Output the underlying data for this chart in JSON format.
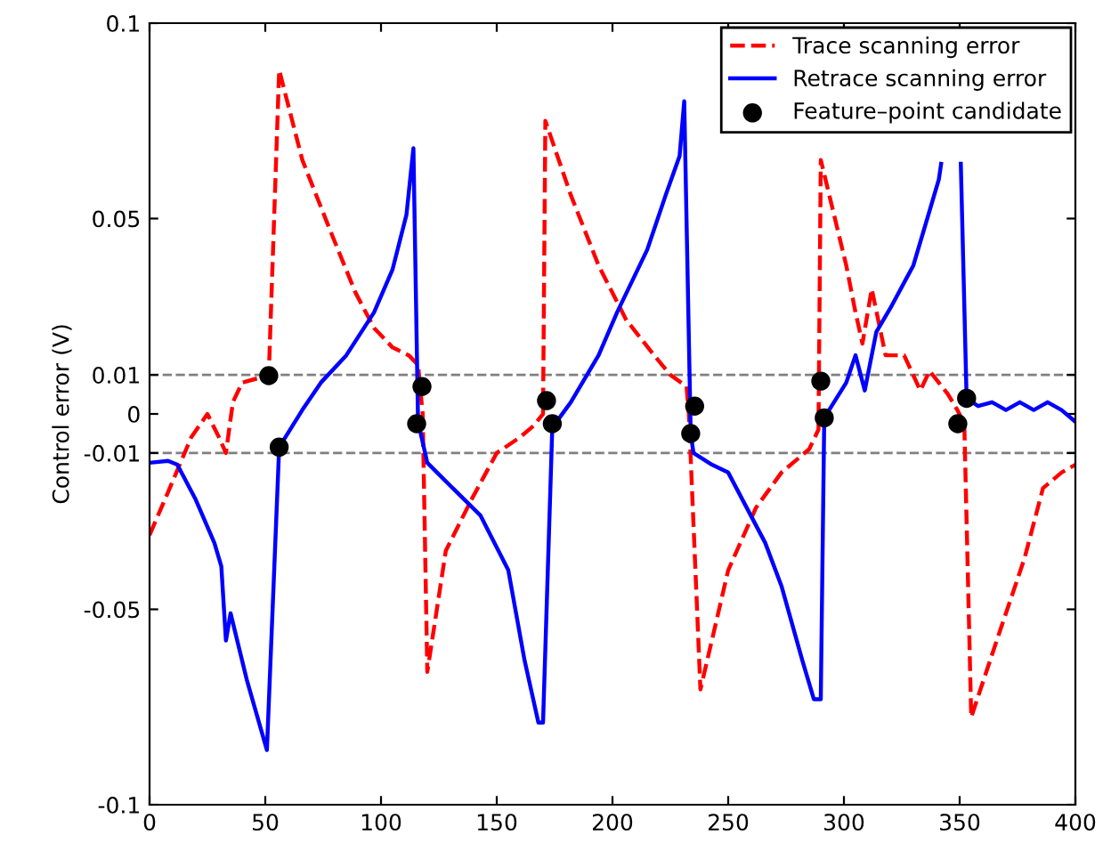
{
  "chart_data": {
    "type": "line",
    "ylabel": "Control error (V)",
    "xlim": [
      0,
      400
    ],
    "ylim": [
      -0.1,
      0.1
    ],
    "xticks": [
      0,
      50,
      100,
      150,
      200,
      250,
      300,
      350,
      400
    ],
    "yticks": [
      -0.1,
      -0.05,
      -0.01,
      0,
      0.01,
      0.05,
      0.1
    ],
    "grid": false,
    "legend": "top right",
    "ref_lines": [
      {
        "axis": "y",
        "value": 0.01,
        "color": "#808080",
        "line_style": "dashed"
      },
      {
        "axis": "y",
        "value": -0.01,
        "color": "#808080",
        "line_style": "dashed"
      }
    ],
    "series": [
      {
        "name": "Trace scanning error",
        "color": "#ff0000",
        "line_style": "dashed",
        "marker": "none",
        "x": [
          0,
          8,
          18,
          25,
          30,
          33,
          36,
          40,
          46,
          51.5,
          56,
          66,
          78,
          89,
          97,
          105,
          112,
          116,
          118,
          120,
          128,
          139,
          150,
          160,
          166,
          170,
          171,
          182,
          194,
          206,
          218,
          225,
          232,
          233,
          238,
          250,
          262,
          273,
          285,
          289,
          290,
          301,
          305,
          308,
          312,
          318,
          326,
          333,
          337,
          345,
          349,
          352,
          355,
          366,
          378,
          386,
          394,
          400
        ],
        "values": [
          -0.031,
          -0.02,
          -0.006,
          0,
          -0.006,
          -0.01,
          0.003,
          0.008,
          0.009,
          0.0098,
          0.088,
          0.065,
          0.047,
          0.031,
          0.022,
          0.017,
          0.015,
          0.0125,
          0.0,
          -0.066,
          -0.035,
          -0.022,
          -0.01,
          -0.006,
          -0.003,
          0.0,
          0.075,
          0.056,
          0.038,
          0.024,
          0.015,
          0.01,
          0.007,
          0.0,
          -0.0705,
          -0.04,
          -0.024,
          -0.015,
          -0.009,
          -0.004,
          0.065,
          0.038,
          0.026,
          0.018,
          0.032,
          0.015,
          0.015,
          0.006,
          0.011,
          0.005,
          0.001,
          -0.0025,
          -0.0776,
          -0.058,
          -0.037,
          -0.019,
          -0.015,
          -0.013
        ]
      },
      {
        "name": "Retrace scanning error",
        "color": "#0000ff",
        "line_style": "solid",
        "marker": "none",
        "x": [
          0,
          8,
          12,
          20,
          28,
          31,
          33,
          35,
          42,
          50.7,
          56,
          66,
          74,
          85,
          97,
          105,
          111,
          114,
          116,
          120,
          131,
          143,
          155,
          162,
          168,
          170,
          174,
          182,
          194,
          202,
          215,
          223,
          229,
          231,
          233.8,
          235,
          243,
          250,
          258,
          266,
          273,
          282,
          287,
          290,
          291.5,
          301,
          305,
          309,
          314,
          320,
          330,
          335,
          341,
          342,
          346,
          350.5,
          353,
          358,
          364,
          370,
          376,
          382,
          388,
          394,
          400
        ],
        "values": [
          -0.0125,
          -0.012,
          -0.013,
          -0.022,
          -0.033,
          -0.039,
          -0.058,
          -0.051,
          -0.068,
          -0.086,
          -0.0085,
          0.001,
          0.008,
          0.015,
          0.026,
          0.037,
          0.051,
          0.068,
          -0.002,
          -0.0125,
          -0.019,
          -0.026,
          -0.04,
          -0.063,
          -0.079,
          -0.079,
          -0.0035,
          0.003,
          0.015,
          0.026,
          0.042,
          0.056,
          0.066,
          0.08,
          -0.005,
          -0.01,
          -0.013,
          -0.015,
          -0.024,
          -0.033,
          -0.044,
          -0.063,
          -0.073,
          -0.073,
          -0.001,
          0.008,
          0.015,
          0.006,
          0.021,
          0.027,
          0.038,
          0.048,
          0.06,
          0.064,
          null,
          0.064,
          0.004,
          0.002,
          0.003,
          0.001,
          0.003,
          0.001,
          0.003,
          0.001,
          -0.002
        ]
      },
      {
        "name": "Feature–point candidate",
        "type": "scatter",
        "color": "#000000",
        "marker": "circle",
        "x": [
          51.5,
          56,
          115.4,
          117.7,
          171.5,
          174,
          233.8,
          235.5,
          290,
          291.5,
          349.2,
          353
        ],
        "values": [
          0.0098,
          -0.0085,
          -0.0025,
          0.007,
          0.0034,
          -0.0025,
          -0.005,
          0.002,
          0.0084,
          -0.001,
          -0.0025,
          0.004
        ]
      }
    ]
  }
}
